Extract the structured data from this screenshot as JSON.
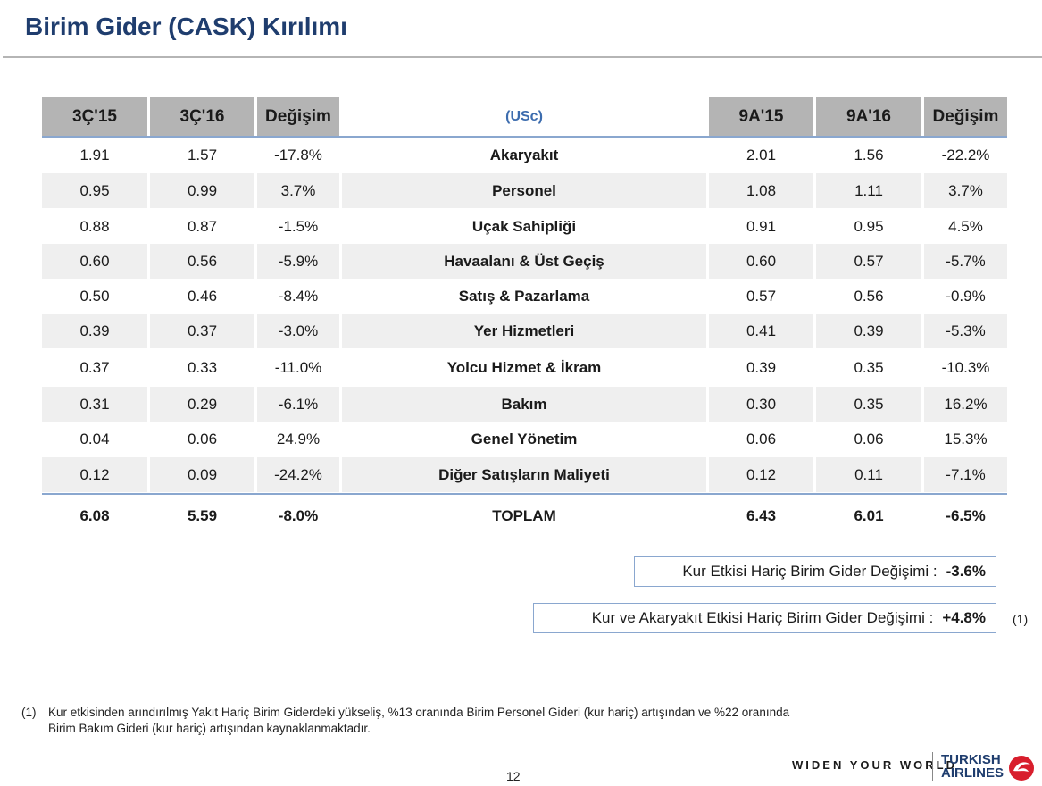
{
  "title": "Birim Gider (CASK) Kırılımı",
  "header": {
    "col1": "3Ç'15",
    "col2": "3Ç'16",
    "col3": "Değişim",
    "usc": "(USc)",
    "col5": "9A'15",
    "col6": "9A'16",
    "col7": "Değişim"
  },
  "rows": [
    {
      "q15": "1.91",
      "q16": "1.57",
      "qchg": "-17.8%",
      "name": "Akaryakıt",
      "a15": "2.01",
      "a16": "1.56",
      "achg": "-22.2%"
    },
    {
      "q15": "0.95",
      "q16": "0.99",
      "qchg": "3.7%",
      "name": "Personel",
      "a15": "1.08",
      "a16": "1.11",
      "achg": "3.7%"
    },
    {
      "q15": "0.88",
      "q16": "0.87",
      "qchg": "-1.5%",
      "name": "Uçak Sahipliği",
      "a15": "0.91",
      "a16": "0.95",
      "achg": "4.5%"
    },
    {
      "q15": "0.60",
      "q16": "0.56",
      "qchg": "-5.9%",
      "name": "Havaalanı & Üst Geçiş",
      "a15": "0.60",
      "a16": "0.57",
      "achg": "-5.7%"
    },
    {
      "q15": "0.50",
      "q16": "0.46",
      "qchg": "-8.4%",
      "name": "Satış & Pazarlama",
      "a15": "0.57",
      "a16": "0.56",
      "achg": "-0.9%"
    },
    {
      "q15": "0.39",
      "q16": "0.37",
      "qchg": "-3.0%",
      "name": "Yer Hizmetleri",
      "a15": "0.41",
      "a16": "0.39",
      "achg": "-5.3%"
    },
    {
      "q15": "0.37",
      "q16": "0.33",
      "qchg": "-11.0%",
      "name": "Yolcu Hizmet & İkram",
      "a15": "0.39",
      "a16": "0.35",
      "achg": "-10.3%"
    },
    {
      "q15": "0.31",
      "q16": "0.29",
      "qchg": "-6.1%",
      "name": "Bakım",
      "a15": "0.30",
      "a16": "0.35",
      "achg": "16.2%"
    },
    {
      "q15": "0.04",
      "q16": "0.06",
      "qchg": "24.9%",
      "name": "Genel Yönetim",
      "a15": "0.06",
      "a16": "0.06",
      "achg": "15.3%"
    },
    {
      "q15": "0.12",
      "q16": "0.09",
      "qchg": "-24.2%",
      "name": "Diğer Satışların Maliyeti",
      "a15": "0.12",
      "a16": "0.11",
      "achg": "-7.1%"
    }
  ],
  "total": {
    "q15": "6.08",
    "q16": "5.59",
    "qchg": "-8.0%",
    "name": "TOPLAM",
    "a15": "6.43",
    "a16": "6.01",
    "achg": "-6.5%"
  },
  "box1": {
    "label": "Kur Etkisi Hariç Birim Gider Değişimi :",
    "value": "-3.6%"
  },
  "box2": {
    "label": "Kur ve Akaryakıt Etkisi Hariç Birim Gider Değişimi :",
    "value": "+4.8%",
    "ref": "(1)"
  },
  "footnote": {
    "num": "(1)",
    "line1": "Kur etkisinden arındırılmış Yakıt Hariç Birim Giderdeki yükseliş, %13 oranında Birim Personel Gideri (kur hariç) artışından ve %22 oranında",
    "line2": "Birim Bakım Gideri (kur hariç) artışından kaynaklanmaktadır."
  },
  "page_number": "12",
  "slogan": "WIDEN YOUR WORLD",
  "logo": {
    "line1": "TURKISH",
    "line2": "AIRLINES"
  },
  "colors": {
    "title": "#1f3d6e",
    "header_bg": "#b4b4b4",
    "rule": "#8aa7cf",
    "usc": "#3c6cae",
    "logo_red": "#d81e2c"
  }
}
